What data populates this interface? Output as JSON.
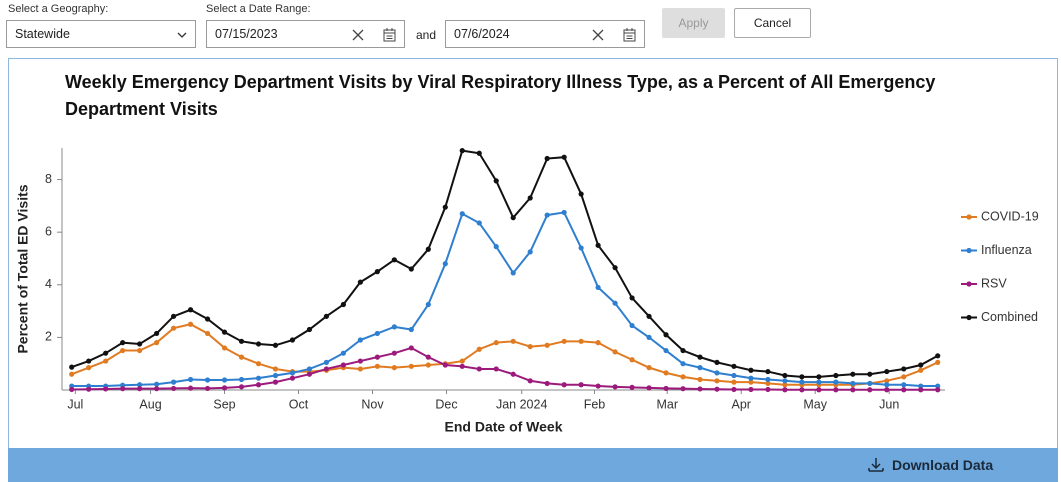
{
  "controls": {
    "geography_label": "Select a Geography:",
    "geography_value": "Statewide",
    "date_range_label": "Select a Date Range:",
    "start_date": "07/15/2023",
    "and_text": "and",
    "end_date": "07/6/2024",
    "apply": "Apply",
    "cancel": "Cancel"
  },
  "chart_data": {
    "type": "line",
    "title": "Weekly Emergency Department Visits by Viral Respiratory Illness Type, as a Percent of All Emergency Department Visits",
    "x_label": "End Date of Week",
    "y_label": "Percent of Total ED Visits",
    "x": [
      "2023-07-15",
      "2023-07-22",
      "2023-07-29",
      "2023-08-05",
      "2023-08-12",
      "2023-08-19",
      "2023-08-26",
      "2023-09-02",
      "2023-09-09",
      "2023-09-16",
      "2023-09-23",
      "2023-09-30",
      "2023-10-07",
      "2023-10-14",
      "2023-10-21",
      "2023-10-28",
      "2023-11-04",
      "2023-11-11",
      "2023-11-18",
      "2023-11-25",
      "2023-12-02",
      "2023-12-09",
      "2023-12-16",
      "2023-12-23",
      "2023-12-30",
      "2024-01-06",
      "2024-01-13",
      "2024-01-20",
      "2024-01-27",
      "2024-02-03",
      "2024-02-10",
      "2024-02-17",
      "2024-02-24",
      "2024-03-02",
      "2024-03-09",
      "2024-03-16",
      "2024-03-23",
      "2024-03-30",
      "2024-04-06",
      "2024-04-13",
      "2024-04-20",
      "2024-04-27",
      "2024-05-04",
      "2024-05-11",
      "2024-05-18",
      "2024-05-25",
      "2024-06-01",
      "2024-06-08",
      "2024-06-15",
      "2024-06-22",
      "2024-06-29",
      "2024-07-06"
    ],
    "series": [
      {
        "name": "COVID-19",
        "color": "#e07b22",
        "values": [
          0.6,
          0.85,
          1.1,
          1.5,
          1.5,
          1.8,
          2.35,
          2.5,
          2.15,
          1.6,
          1.25,
          1.0,
          0.8,
          0.7,
          0.7,
          0.75,
          0.85,
          0.8,
          0.9,
          0.85,
          0.9,
          0.95,
          1.0,
          1.1,
          1.55,
          1.8,
          1.85,
          1.65,
          1.7,
          1.85,
          1.85,
          1.8,
          1.45,
          1.15,
          0.85,
          0.65,
          0.5,
          0.4,
          0.35,
          0.3,
          0.3,
          0.25,
          0.2,
          0.2,
          0.2,
          0.2,
          0.2,
          0.25,
          0.35,
          0.5,
          0.75,
          1.05
        ]
      },
      {
        "name": "Influenza",
        "color": "#2f7fd0",
        "values": [
          0.15,
          0.15,
          0.15,
          0.18,
          0.2,
          0.22,
          0.3,
          0.4,
          0.38,
          0.38,
          0.4,
          0.45,
          0.55,
          0.65,
          0.8,
          1.05,
          1.4,
          1.9,
          2.15,
          2.4,
          2.3,
          3.25,
          4.8,
          6.7,
          6.35,
          5.45,
          4.45,
          5.25,
          6.65,
          6.75,
          5.4,
          3.9,
          3.3,
          2.45,
          2.0,
          1.5,
          1.0,
          0.85,
          0.65,
          0.55,
          0.45,
          0.4,
          0.35,
          0.3,
          0.3,
          0.3,
          0.25,
          0.25,
          0.2,
          0.2,
          0.15,
          0.15
        ]
      },
      {
        "name": "RSV",
        "color": "#9c1a7c",
        "values": [
          0.02,
          0.03,
          0.04,
          0.05,
          0.05,
          0.05,
          0.06,
          0.07,
          0.06,
          0.08,
          0.12,
          0.2,
          0.3,
          0.45,
          0.6,
          0.8,
          0.95,
          1.1,
          1.25,
          1.4,
          1.6,
          1.25,
          0.95,
          0.9,
          0.8,
          0.8,
          0.6,
          0.35,
          0.25,
          0.2,
          0.2,
          0.15,
          0.12,
          0.1,
          0.08,
          0.06,
          0.05,
          0.04,
          0.03,
          0.02,
          0.02,
          0.02,
          0.01,
          0.01,
          0.01,
          0.01,
          0.01,
          0.01,
          0.01,
          0.01,
          0.01,
          0.01
        ]
      },
      {
        "name": "Combined",
        "color": "#111111",
        "values": [
          0.87,
          1.1,
          1.4,
          1.8,
          1.75,
          2.15,
          2.8,
          3.05,
          2.7,
          2.2,
          1.85,
          1.75,
          1.7,
          1.9,
          2.3,
          2.8,
          3.25,
          4.1,
          4.5,
          4.95,
          4.6,
          5.35,
          6.95,
          9.1,
          9.0,
          7.95,
          6.55,
          7.3,
          8.8,
          8.85,
          7.45,
          5.5,
          4.65,
          3.5,
          2.8,
          2.1,
          1.5,
          1.25,
          1.05,
          0.9,
          0.75,
          0.7,
          0.55,
          0.5,
          0.5,
          0.55,
          0.6,
          0.6,
          0.7,
          0.8,
          0.95,
          1.3
        ]
      }
    ],
    "xlim": [
      "2023-07-11",
      "2024-07-09"
    ],
    "xticks": [
      {
        "value": "2023-07",
        "label": "Jul"
      },
      {
        "value": "2023-08",
        "label": "Aug"
      },
      {
        "value": "2023-09",
        "label": "Sep"
      },
      {
        "value": "2023-10",
        "label": "Oct"
      },
      {
        "value": "2023-11",
        "label": "Nov"
      },
      {
        "value": "2023-12",
        "label": "Dec"
      },
      {
        "value": "2024-01",
        "label": "Jan 2024"
      },
      {
        "value": "2024-02",
        "label": "Feb"
      },
      {
        "value": "2024-03",
        "label": "Mar"
      },
      {
        "value": "2024-04",
        "label": "Apr"
      },
      {
        "value": "2024-05",
        "label": "May"
      },
      {
        "value": "2024-06",
        "label": "Jun"
      }
    ],
    "ylim": [
      0,
      9.2
    ],
    "yticks": [
      2,
      4,
      6,
      8
    ],
    "grid": false,
    "legend": "right"
  },
  "footer": {
    "download": "Download Data"
  }
}
